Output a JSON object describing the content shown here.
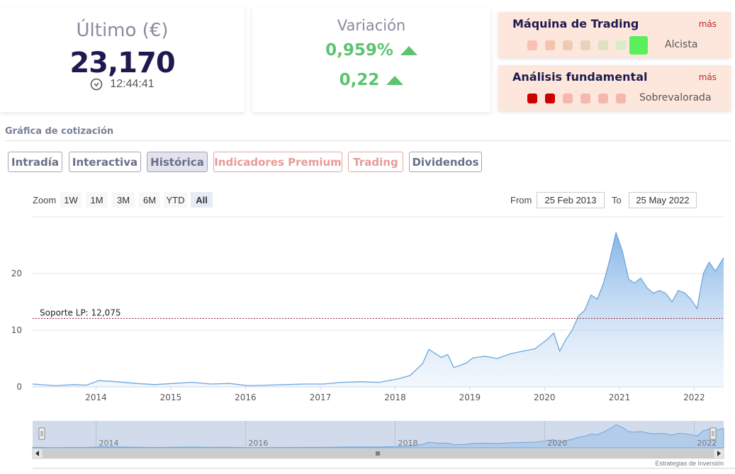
{
  "last": {
    "title": "Último (€)",
    "value": "23,170",
    "time": "12:44:41",
    "time_icon": "clock-icon"
  },
  "variation": {
    "title": "Variación",
    "percent": "0,959%",
    "absolute": "0,22",
    "color": "#5bc46f"
  },
  "trading_machine": {
    "title": "Máquina de Trading",
    "more": "más",
    "status": "Alcista",
    "dots": [
      "#f7c2b3",
      "#f5c2b0",
      "#efcbb3",
      "#e5d4b9",
      "#dde1c1",
      "#d8ecc9",
      "#58f05b"
    ]
  },
  "fundamental": {
    "title": "Análisis fundamental",
    "more": "más",
    "status": "Sobrevalorada",
    "dots": [
      "#cc0000",
      "#cc0000",
      "#f5b8ae",
      "#f5b8ae",
      "#f5b8ae",
      "#f5b8ae"
    ]
  },
  "section": {
    "title": "Gráfica de cotización"
  },
  "tabs": [
    {
      "label": "Intradía",
      "kind": "normal"
    },
    {
      "label": "Interactiva",
      "kind": "normal"
    },
    {
      "label": "Histórica",
      "kind": "active"
    },
    {
      "label": "Indicadores Premium",
      "kind": "premium"
    },
    {
      "label": "Trading",
      "kind": "premium"
    },
    {
      "label": "Dividendos",
      "kind": "normal"
    }
  ],
  "zoom": {
    "label": "Zoom",
    "buttons": [
      "1W",
      "1M",
      "3M",
      "6M",
      "YTD",
      "All"
    ],
    "active": "All"
  },
  "range": {
    "from_label": "From",
    "from_value": "25 Feb 2013",
    "to_label": "To",
    "to_value": "25 May 2022"
  },
  "credit": "Estrategias de Inversión",
  "chart_data": {
    "type": "area",
    "title": "",
    "xlabel": "",
    "ylabel": "",
    "xlim": [
      "2013-02-25",
      "2022-05-25"
    ],
    "ylim": [
      0,
      30
    ],
    "yticks": [
      0,
      10,
      20
    ],
    "xticks": [
      "2014",
      "2015",
      "2016",
      "2017",
      "2018",
      "2019",
      "2020",
      "2021",
      "2022"
    ],
    "grid": true,
    "support_line": {
      "label": "Soporte LP: 12,075",
      "value": 12.075
    },
    "series": [
      {
        "x": [
          "2013-03",
          "2013-06",
          "2013-09",
          "2013-11",
          "2014-01",
          "2014-04",
          "2014-07",
          "2014-10",
          "2015-01",
          "2015-04",
          "2015-07",
          "2015-10",
          "2016-01",
          "2016-04",
          "2016-07",
          "2016-10",
          "2017-01",
          "2017-04",
          "2017-07",
          "2017-10",
          "2018-01",
          "2018-03",
          "2018-05",
          "2018-06",
          "2018-08",
          "2018-09",
          "2018-10",
          "2018-12",
          "2019-01",
          "2019-03",
          "2019-05",
          "2019-07",
          "2019-09",
          "2019-11",
          "2020-01",
          "2020-02",
          "2020-03",
          "2020-04",
          "2020-05",
          "2020-06",
          "2020-07",
          "2020-08",
          "2020-09",
          "2020-10",
          "2020-11",
          "2020-12",
          "2021-01",
          "2021-02",
          "2021-03",
          "2021-04",
          "2021-05",
          "2021-06",
          "2021-07",
          "2021-08",
          "2021-09",
          "2021-10",
          "2021-11",
          "2021-12",
          "2022-01",
          "2022-02",
          "2022-03",
          "2022-04",
          "2022-05"
        ],
        "y": [
          0.5,
          0.2,
          0.4,
          0.3,
          1.1,
          0.9,
          0.6,
          0.4,
          0.6,
          0.8,
          0.5,
          0.6,
          0.2,
          0.3,
          0.4,
          0.5,
          0.5,
          0.8,
          0.9,
          0.8,
          1.4,
          2.0,
          4.1,
          6.6,
          5.2,
          5.7,
          3.4,
          4.2,
          5.1,
          5.4,
          5.0,
          5.8,
          6.3,
          6.7,
          8.4,
          9.5,
          6.3,
          8.4,
          10.0,
          12.5,
          13.5,
          16.2,
          15.5,
          18.3,
          22.5,
          27.2,
          24.0,
          19.0,
          18.3,
          19.2,
          17.5,
          16.5,
          17.0,
          16.5,
          15.0,
          17.0,
          16.6,
          15.5,
          13.8,
          20.0,
          22.0,
          20.4,
          22.8
        ]
      }
    ]
  }
}
